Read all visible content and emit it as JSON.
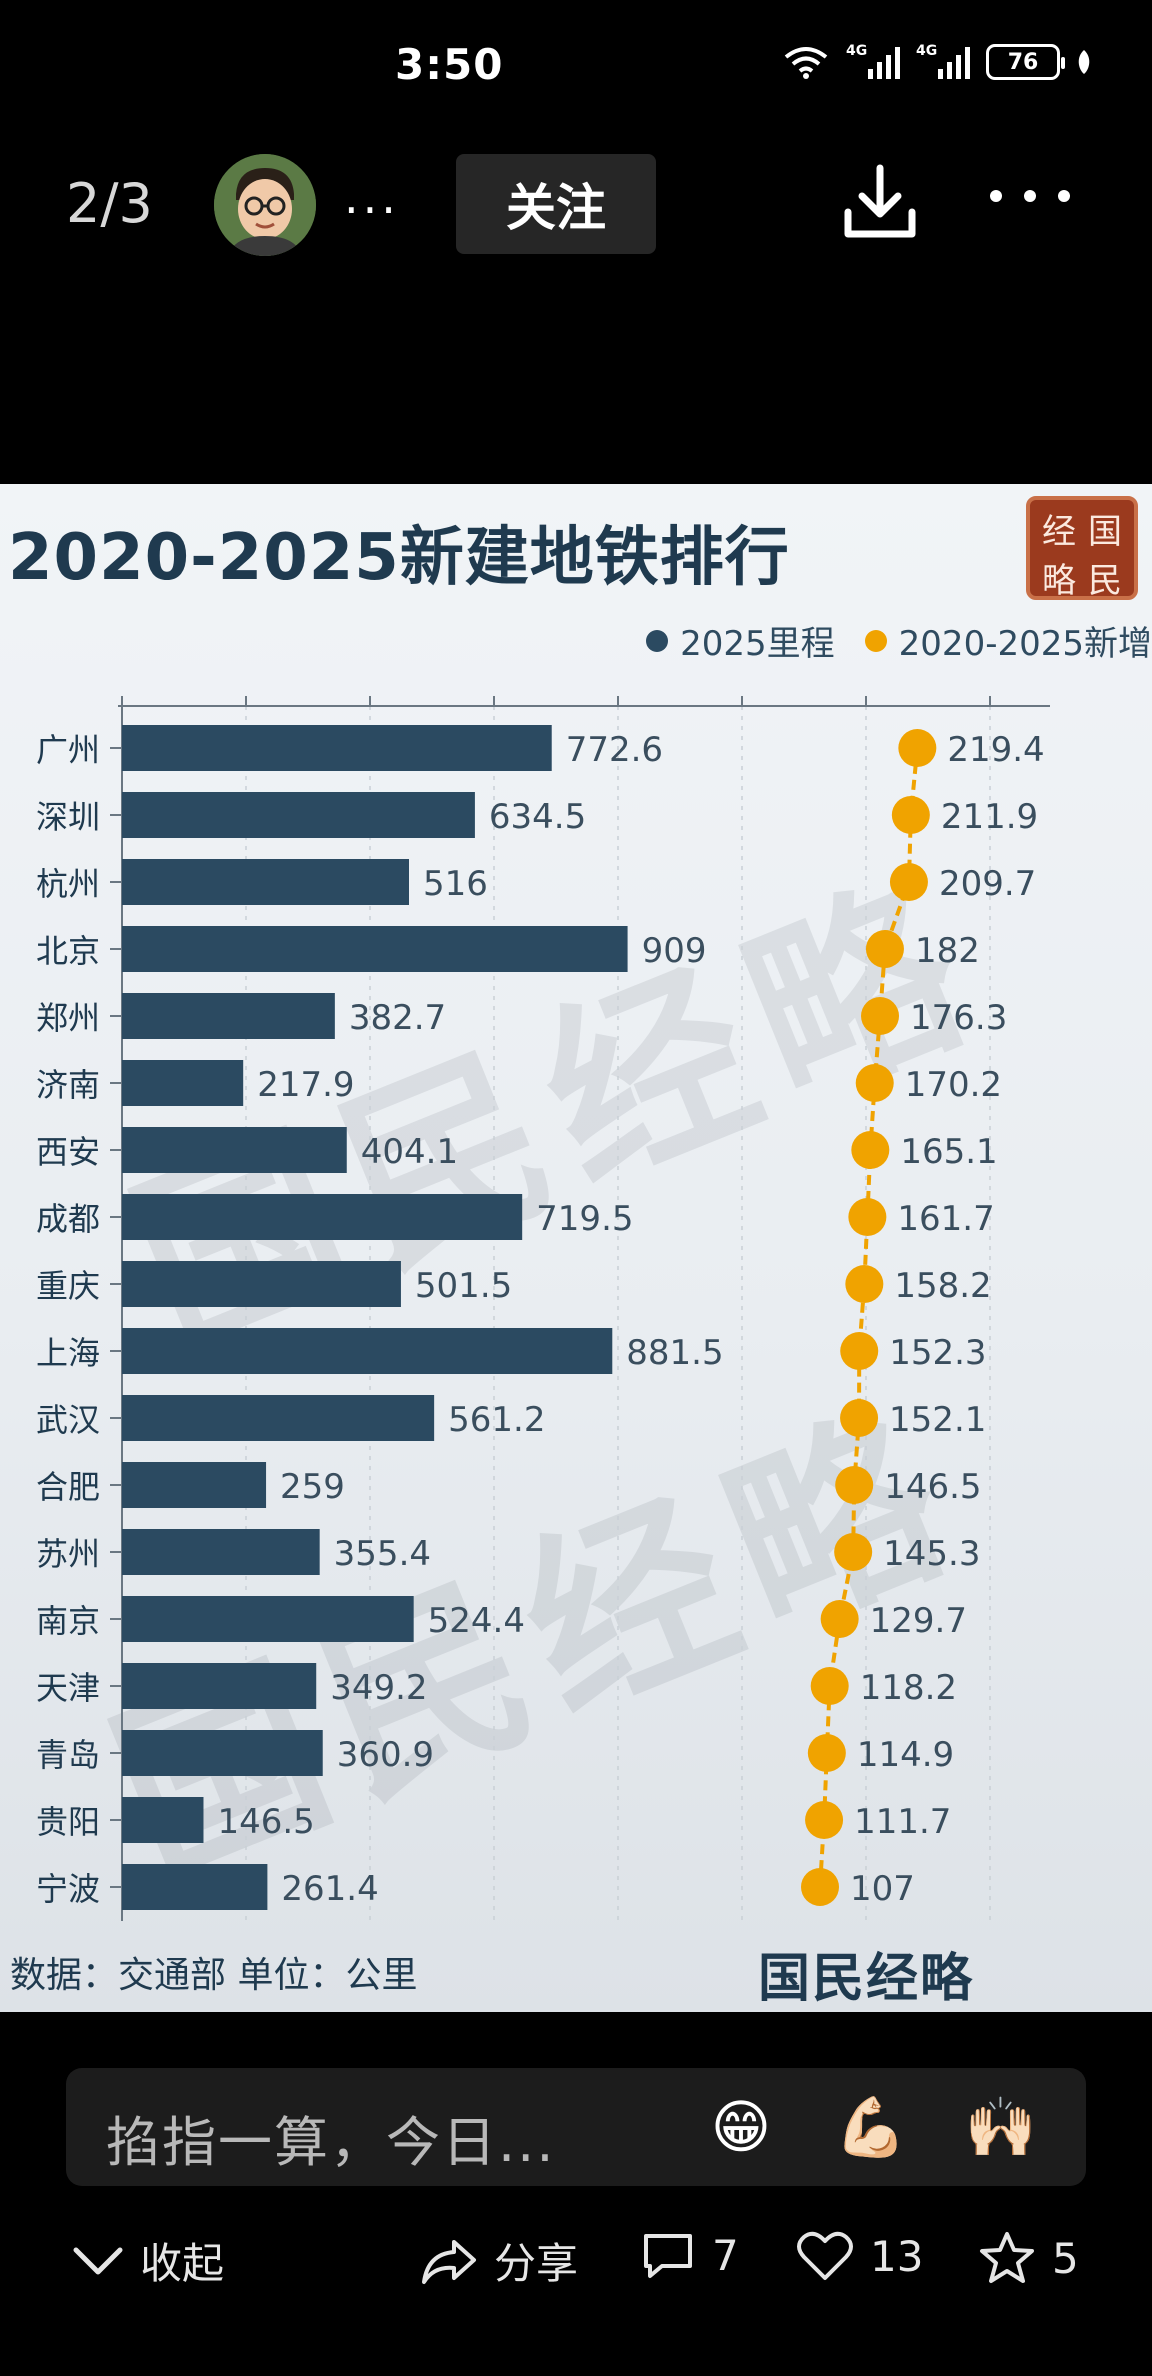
{
  "status_bar": {
    "time": "3:50",
    "wifi_icon": "wifi-6-icon",
    "signal_1_label": "4G",
    "signal_2_label": "4G",
    "battery": "76"
  },
  "header": {
    "page_indicator": "2/3",
    "avatar_icon": "avatar-icon",
    "author_name": "...",
    "follow_label": "关注",
    "download_icon": "download-icon",
    "more_icon": "more-icon"
  },
  "chart_data": {
    "type": "bar",
    "title": "2020-2025新建地铁排行",
    "seal_chars": [
      "经",
      "国",
      "略",
      "民"
    ],
    "legend": [
      {
        "label": "2025里程",
        "color": "#2b4a61"
      },
      {
        "label": "2020-2025新增",
        "color": "#f0a300"
      }
    ],
    "categories": [
      "广州",
      "深圳",
      "杭州",
      "北京",
      "郑州",
      "济南",
      "西安",
      "成都",
      "重庆",
      "上海",
      "武汉",
      "合肥",
      "苏州",
      "南京",
      "天津",
      "青岛",
      "贵阳",
      "宁波"
    ],
    "series": [
      {
        "name": "2025里程",
        "values": [
          772.6,
          634.5,
          516,
          909,
          382.7,
          217.9,
          404.1,
          719.5,
          501.5,
          881.5,
          561.2,
          259,
          355.4,
          524.4,
          349.2,
          360.9,
          146.5,
          261.4
        ]
      },
      {
        "name": "2020-2025新增",
        "values": [
          219.4,
          211.9,
          209.7,
          182,
          176.3,
          170.2,
          165.1,
          161.7,
          158.2,
          152.3,
          152.1,
          146.5,
          145.3,
          129.7,
          118.2,
          114.9,
          111.7,
          107
        ]
      }
    ],
    "value_labels": {
      "mileage": [
        "772.6",
        "634.5",
        "516",
        "909",
        "382.7",
        "217.9",
        "404.1",
        "719.5",
        "501.5",
        "881.5",
        "561.2",
        "259",
        "355.4",
        "524.4",
        "349.2",
        "360.9",
        "146.5",
        "261.4"
      ],
      "added": [
        "219.4",
        "211.9",
        "209.7",
        "182",
        "176.3",
        "170.2",
        "165.1",
        "161.7",
        "158.2",
        "152.3",
        "152.1",
        "146.5",
        "145.3",
        "129.7",
        "118.2",
        "114.9",
        "111.7",
        "107"
      ]
    },
    "xlim_mileage": [
      0,
      1000
    ],
    "grid": true,
    "legend_position": "top-right",
    "source_note": "数据：交通部 单位：公里",
    "watermark": "国民经略",
    "brand_footer": "国民经略"
  },
  "comment_bar": {
    "placeholder": "掐指一算，今日...",
    "emojis": [
      "😁",
      "💪🏻",
      "🙌🏻"
    ]
  },
  "actions": {
    "collapse_label": "收起",
    "share_label": "分享",
    "comment_count": "7",
    "like_count": "13",
    "favorite_count": "5"
  },
  "colors": {
    "bar": "#2b4a61",
    "dot": "#f0a300",
    "title": "#1f3a4f"
  }
}
